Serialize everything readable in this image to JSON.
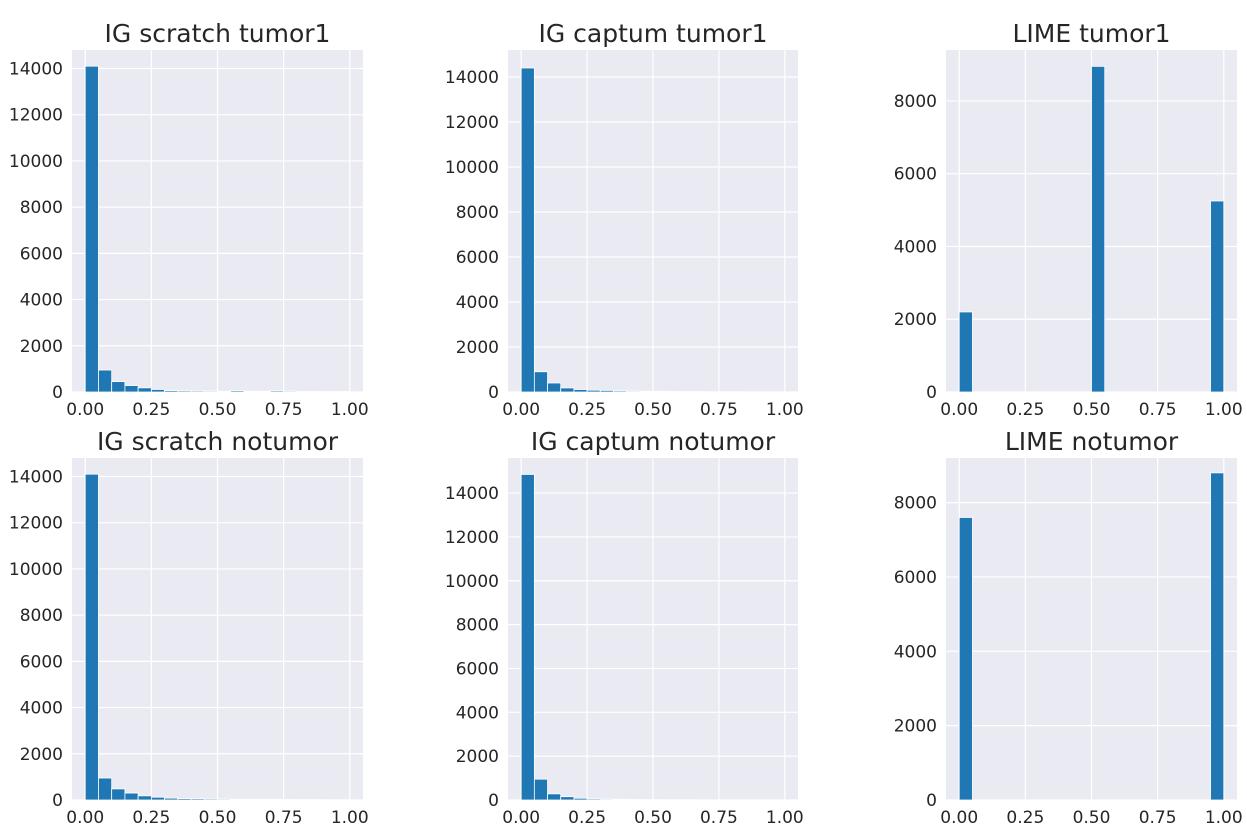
{
  "colors": {
    "bar": "#1f77b4",
    "plot_background": "#eaeaf2",
    "grid": "#ffffff",
    "text": "#262626"
  },
  "chart_data": [
    {
      "type": "bar",
      "title": "IG scratch tumor1",
      "bin_width": 0.05,
      "x": [
        0.0,
        0.05,
        0.1,
        0.15,
        0.2,
        0.25,
        0.3,
        0.35,
        0.4,
        0.45,
        0.5,
        0.55,
        0.6,
        0.65,
        0.7,
        0.75,
        0.8,
        0.85,
        0.9,
        0.95
      ],
      "values": [
        14100,
        950,
        450,
        280,
        180,
        110,
        60,
        50,
        45,
        40,
        30,
        55,
        35,
        30,
        50,
        40,
        25,
        25,
        20,
        20
      ],
      "xlim": [
        -0.05,
        1.05
      ],
      "ylim": [
        0,
        14800
      ],
      "xticks": [
        "0.00",
        "0.25",
        "0.50",
        "0.75",
        "1.00"
      ],
      "yticks": [
        "0",
        "2000",
        "4000",
        "6000",
        "8000",
        "10000",
        "12000",
        "14000"
      ],
      "grid": true
    },
    {
      "type": "bar",
      "title": "IG captum tumor1",
      "bin_width": 0.05,
      "x": [
        0.0,
        0.05,
        0.1,
        0.15,
        0.2,
        0.25,
        0.3,
        0.35,
        0.4,
        0.45,
        0.5,
        0.55,
        0.6,
        0.65,
        0.7,
        0.75,
        0.8,
        0.85,
        0.9,
        0.95
      ],
      "values": [
        14400,
        900,
        400,
        180,
        110,
        80,
        70,
        50,
        40,
        35,
        30,
        25,
        20,
        15,
        10,
        10,
        10,
        8,
        5,
        5
      ],
      "xlim": [
        -0.05,
        1.05
      ],
      "ylim": [
        0,
        15200
      ],
      "xticks": [
        "0.00",
        "0.25",
        "0.50",
        "0.75",
        "1.00"
      ],
      "yticks": [
        "0",
        "2000",
        "4000",
        "6000",
        "8000",
        "10000",
        "12000",
        "14000"
      ],
      "grid": true
    },
    {
      "type": "bar",
      "title": "LIME tumor1",
      "bin_width": 0.05,
      "x": [
        0.0,
        0.05,
        0.1,
        0.15,
        0.2,
        0.25,
        0.3,
        0.35,
        0.4,
        0.45,
        0.5,
        0.55,
        0.6,
        0.65,
        0.7,
        0.75,
        0.8,
        0.85,
        0.9,
        0.95
      ],
      "values": [
        2200,
        0,
        0,
        0,
        0,
        0,
        0,
        0,
        0,
        0,
        8950,
        0,
        0,
        0,
        0,
        0,
        0,
        0,
        0,
        5250
      ],
      "xlim": [
        -0.05,
        1.05
      ],
      "ylim": [
        0,
        9400
      ],
      "xticks": [
        "0.00",
        "0.25",
        "0.50",
        "0.75",
        "1.00"
      ],
      "yticks": [
        "0",
        "2000",
        "4000",
        "6000",
        "8000"
      ],
      "grid": true
    },
    {
      "type": "bar",
      "title": "IG scratch notumor",
      "bin_width": 0.05,
      "x": [
        0.0,
        0.05,
        0.1,
        0.15,
        0.2,
        0.25,
        0.3,
        0.35,
        0.4,
        0.45,
        0.5,
        0.55,
        0.6,
        0.65,
        0.7,
        0.75,
        0.8,
        0.85,
        0.9,
        0.95
      ],
      "values": [
        14100,
        950,
        480,
        300,
        180,
        120,
        80,
        60,
        55,
        45,
        40,
        35,
        30,
        30,
        30,
        25,
        20,
        15,
        10,
        10
      ],
      "xlim": [
        -0.05,
        1.05
      ],
      "ylim": [
        0,
        14800
      ],
      "xticks": [
        "0.00",
        "0.25",
        "0.50",
        "0.75",
        "1.00"
      ],
      "yticks": [
        "0",
        "2000",
        "4000",
        "6000",
        "8000",
        "10000",
        "12000",
        "14000"
      ],
      "grid": true
    },
    {
      "type": "bar",
      "title": "IG captum notumor",
      "bin_width": 0.05,
      "x": [
        0.0,
        0.05,
        0.1,
        0.15,
        0.2,
        0.25,
        0.3,
        0.35,
        0.4,
        0.45,
        0.5,
        0.55,
        0.6,
        0.65,
        0.7,
        0.75,
        0.8,
        0.85,
        0.9,
        0.95
      ],
      "values": [
        14850,
        950,
        280,
        150,
        80,
        50,
        40,
        30,
        25,
        20,
        15,
        10,
        10,
        8,
        5,
        5,
        5,
        5,
        5,
        5
      ],
      "xlim": [
        -0.05,
        1.05
      ],
      "ylim": [
        0,
        15600
      ],
      "xticks": [
        "0.00",
        "0.25",
        "0.50",
        "0.75",
        "1.00"
      ],
      "yticks": [
        "0",
        "2000",
        "4000",
        "6000",
        "8000",
        "10000",
        "12000",
        "14000"
      ],
      "grid": true
    },
    {
      "type": "bar",
      "title": "LIME notumor",
      "bin_width": 0.05,
      "x": [
        0.0,
        0.05,
        0.1,
        0.15,
        0.2,
        0.25,
        0.3,
        0.35,
        0.4,
        0.45,
        0.5,
        0.55,
        0.6,
        0.65,
        0.7,
        0.75,
        0.8,
        0.85,
        0.9,
        0.95
      ],
      "values": [
        7600,
        0,
        0,
        0,
        0,
        0,
        0,
        0,
        0,
        0,
        0,
        0,
        0,
        0,
        0,
        0,
        0,
        0,
        0,
        8800
      ],
      "xlim": [
        -0.05,
        1.05
      ],
      "ylim": [
        0,
        9200
      ],
      "xticks": [
        "0.00",
        "0.25",
        "0.50",
        "0.75",
        "1.00"
      ],
      "yticks": [
        "0",
        "2000",
        "4000",
        "6000",
        "8000"
      ],
      "grid": true
    }
  ]
}
